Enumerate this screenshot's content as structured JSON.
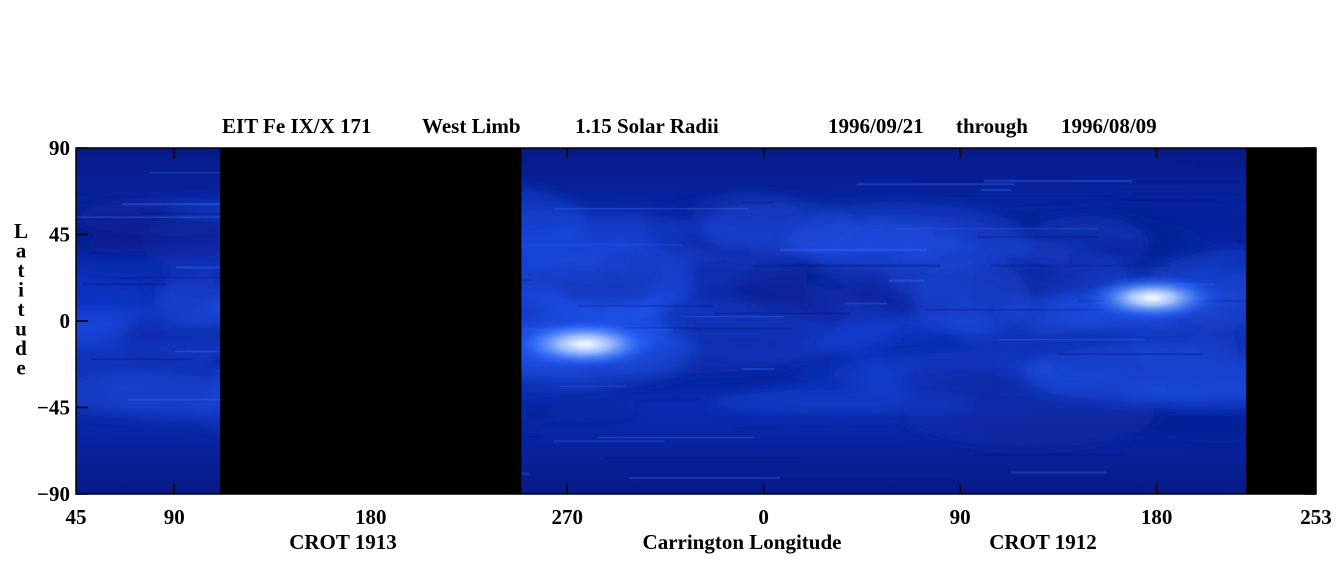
{
  "chart_data": {
    "type": "heatmap",
    "title_parts": [
      "EIT Fe IX/X 171",
      "West Limb",
      "1.15 Solar Radii",
      "1996/09/21",
      "through",
      "1996/08/09"
    ],
    "ylabel": "Latitude",
    "xlabel": "Carrington Longitude",
    "rotation_labels": [
      "CROT 1913",
      "CROT 1912"
    ],
    "ylim": [
      -90,
      90
    ],
    "y_ticks": [
      {
        "value": 90,
        "label": "90"
      },
      {
        "value": 45,
        "label": "45"
      },
      {
        "value": 0,
        "label": "0"
      },
      {
        "value": -45,
        "label": "−45"
      },
      {
        "value": -90,
        "label": "−90"
      }
    ],
    "x_ticks": [
      {
        "index": 0,
        "label": "45"
      },
      {
        "index": 45,
        "label": "90"
      },
      {
        "index": 135,
        "label": "180"
      },
      {
        "index": 225,
        "label": "270"
      },
      {
        "index": 315,
        "label": "0"
      },
      {
        "index": 405,
        "label": "90"
      },
      {
        "index": 495,
        "label": "180"
      },
      {
        "index": 568,
        "label": "253"
      }
    ],
    "x_span": 568,
    "data_gaps": [
      [
        66,
        204
      ],
      [
        536,
        568
      ]
    ],
    "bright_regions": [
      {
        "name": "west-limb-brightening-crot1913",
        "center_index": 233,
        "lat": -12,
        "intensity": 0.95
      },
      {
        "name": "west-limb-brightening-crot1912",
        "center_index": 493,
        "lat": 12,
        "intensity": 0.9
      }
    ],
    "colormap": {
      "low": "#000022",
      "mid": "#0a2bbd",
      "high": "#ffffff"
    },
    "gap_color": "#000000"
  }
}
